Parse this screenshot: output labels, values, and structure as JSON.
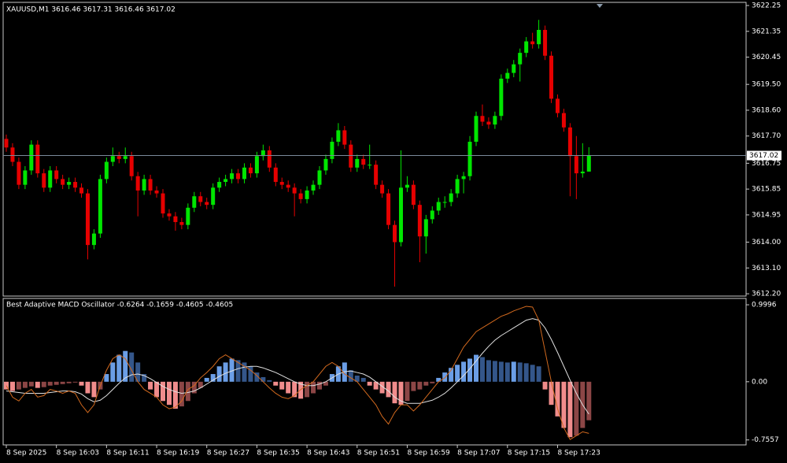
{
  "chart_data": [
    {
      "type": "candlestick",
      "title": "XAUUSD,M1  3616.46 3617.31 3616.46 3617.02",
      "up_color": "#00e600",
      "down_color": "#e60000",
      "last_price_color": "#7a8a9a",
      "ylim": [
        3612.12,
        3622.36
      ],
      "yticks": [
        3622.25,
        3621.35,
        3620.45,
        {
          "value": 3619.5,
          "label": "3619.50"
        },
        {
          "value": 3618.6,
          "label": "3618.60"
        },
        {
          "value": 3617.7,
          "label": "3617.70"
        },
        3616.75,
        3615.85,
        3614.95,
        {
          "value": 3614,
          "label": "3614.00"
        },
        {
          "value": 3613.1,
          "label": "3613.10"
        },
        {
          "value": 3612.2,
          "label": "3612.20"
        }
      ],
      "last_price": 3617.02,
      "ohlc": [
        [
          3617.6,
          3617.75,
          3617.15,
          3617.3
        ],
        [
          3617.3,
          3617.45,
          3616.65,
          3616.8
        ],
        [
          3616.8,
          3616.95,
          3615.85,
          3616.0
        ],
        [
          3616.0,
          3616.65,
          3615.85,
          3616.5
        ],
        [
          3616.5,
          3617.55,
          3616.35,
          3617.4
        ],
        [
          3617.4,
          3617.55,
          3616.25,
          3616.4
        ],
        [
          3616.4,
          3616.55,
          3615.75,
          3615.9
        ],
        [
          3615.9,
          3616.65,
          3615.75,
          3616.5
        ],
        [
          3616.5,
          3616.65,
          3616.05,
          3616.2
        ],
        [
          3616.2,
          3616.35,
          3615.85,
          3616.0
        ],
        [
          3616.0,
          3616.25,
          3615.85,
          3616.1
        ],
        [
          3616.1,
          3616.25,
          3615.75,
          3615.9
        ],
        [
          3615.9,
          3616.05,
          3615.55,
          3615.7
        ],
        [
          3615.7,
          3615.85,
          3613.4,
          3613.9
        ],
        [
          3613.9,
          3614.45,
          3613.75,
          3614.3
        ],
        [
          3614.3,
          3616.35,
          3614.15,
          3616.2
        ],
        [
          3616.2,
          3616.95,
          3616.05,
          3616.8
        ],
        [
          3616.8,
          3617.3,
          3616.65,
          3617.0
        ],
        [
          3617.0,
          3617.15,
          3616.75,
          3616.9
        ],
        [
          3616.9,
          3617.3,
          3616.75,
          3617.0
        ],
        [
          3617.0,
          3617.15,
          3616.15,
          3616.3
        ],
        [
          3616.3,
          3616.45,
          3614.9,
          3615.8
        ],
        [
          3615.8,
          3616.35,
          3615.65,
          3616.2
        ],
        [
          3616.2,
          3616.35,
          3615.65,
          3615.8
        ],
        [
          3615.8,
          3615.95,
          3615.55,
          3615.7
        ],
        [
          3615.7,
          3615.85,
          3614.85,
          3615.0
        ],
        [
          3615.0,
          3615.15,
          3614.75,
          3614.9
        ],
        [
          3614.9,
          3615.05,
          3614.4,
          3614.7
        ],
        [
          3614.7,
          3614.85,
          3614.45,
          3614.6
        ],
        [
          3614.6,
          3615.35,
          3614.45,
          3615.2
        ],
        [
          3615.2,
          3615.75,
          3615.05,
          3615.6
        ],
        [
          3615.6,
          3615.75,
          3615.25,
          3615.4
        ],
        [
          3615.4,
          3615.55,
          3615.15,
          3615.3
        ],
        [
          3615.3,
          3616.05,
          3615.15,
          3615.9
        ],
        [
          3615.9,
          3616.25,
          3615.75,
          3616.1
        ],
        [
          3616.1,
          3616.35,
          3615.95,
          3616.2
        ],
        [
          3616.2,
          3616.55,
          3616.05,
          3616.4
        ],
        [
          3616.4,
          3616.55,
          3616.05,
          3616.2
        ],
        [
          3616.2,
          3616.75,
          3616.05,
          3616.6
        ],
        [
          3616.6,
          3616.75,
          3616.25,
          3616.4
        ],
        [
          3616.4,
          3617.15,
          3616.25,
          3617.0
        ],
        [
          3617.0,
          3617.4,
          3616.85,
          3617.2
        ],
        [
          3617.2,
          3617.35,
          3616.45,
          3616.6
        ],
        [
          3616.6,
          3616.75,
          3615.95,
          3616.1
        ],
        [
          3616.1,
          3616.25,
          3615.85,
          3616.0
        ],
        [
          3616.0,
          3616.15,
          3615.75,
          3615.9
        ],
        [
          3615.9,
          3616.05,
          3614.9,
          3615.7
        ],
        [
          3615.7,
          3615.85,
          3615.35,
          3615.5
        ],
        [
          3615.5,
          3615.95,
          3615.35,
          3615.8
        ],
        [
          3615.8,
          3616.15,
          3615.65,
          3616.0
        ],
        [
          3616.0,
          3616.65,
          3615.85,
          3616.5
        ],
        [
          3616.5,
          3617.05,
          3616.35,
          3616.9
        ],
        [
          3616.9,
          3617.65,
          3616.75,
          3617.5
        ],
        [
          3617.5,
          3618.15,
          3617.35,
          3617.9
        ],
        [
          3617.9,
          3618.05,
          3617.25,
          3617.4
        ],
        [
          3617.4,
          3617.55,
          3616.45,
          3616.6
        ],
        [
          3616.6,
          3617.05,
          3616.45,
          3616.9
        ],
        [
          3616.9,
          3617.05,
          3616.55,
          3616.7
        ],
        [
          3616.7,
          3617.4,
          3616.55,
          3616.7
        ],
        [
          3616.7,
          3616.85,
          3615.85,
          3616.0
        ],
        [
          3616.0,
          3616.15,
          3615.55,
          3615.7
        ],
        [
          3615.7,
          3615.85,
          3614.45,
          3614.6
        ],
        [
          3614.6,
          3614.75,
          3612.45,
          3614.0
        ],
        [
          3614.0,
          3617.2,
          3613.85,
          3615.9
        ],
        [
          3615.9,
          3616.3,
          3615.75,
          3616.0
        ],
        [
          3616.0,
          3616.15,
          3615.15,
          3615.3
        ],
        [
          3615.3,
          3615.45,
          3613.3,
          3614.2
        ],
        [
          3614.2,
          3614.95,
          3613.6,
          3614.8
        ],
        [
          3614.8,
          3615.25,
          3614.65,
          3615.1
        ],
        [
          3615.1,
          3615.55,
          3614.95,
          3615.4
        ],
        [
          3615.4,
          3615.6,
          3615.2,
          3615.4
        ],
        [
          3615.4,
          3615.85,
          3615.25,
          3615.7
        ],
        [
          3615.7,
          3616.35,
          3615.55,
          3616.2
        ],
        [
          3616.2,
          3616.45,
          3615.7,
          3616.3
        ],
        [
          3616.3,
          3617.7,
          3616.15,
          3617.5
        ],
        [
          3617.5,
          3618.55,
          3617.35,
          3618.4
        ],
        [
          3618.4,
          3618.8,
          3618.05,
          3618.2
        ],
        [
          3618.2,
          3618.35,
          3617.95,
          3618.1
        ],
        [
          3618.1,
          3618.55,
          3617.95,
          3618.4
        ],
        [
          3618.4,
          3619.85,
          3618.25,
          3619.7
        ],
        [
          3619.7,
          3620.05,
          3619.55,
          3619.9
        ],
        [
          3619.9,
          3620.35,
          3619.75,
          3620.2
        ],
        [
          3620.2,
          3620.75,
          3619.6,
          3620.6
        ],
        [
          3620.6,
          3621.15,
          3620.45,
          3621.0
        ],
        [
          3621.0,
          3621.3,
          3620.75,
          3620.9
        ],
        [
          3620.9,
          3621.75,
          3620.75,
          3621.4
        ],
        [
          3621.4,
          3621.55,
          3620.35,
          3620.5
        ],
        [
          3620.5,
          3620.65,
          3618.85,
          3619.0
        ],
        [
          3619.0,
          3619.15,
          3618.35,
          3618.5
        ],
        [
          3618.5,
          3618.65,
          3617.85,
          3618.0
        ],
        [
          3618.0,
          3618.15,
          3615.6,
          3617.0
        ],
        [
          3617.0,
          3617.7,
          3615.5,
          3616.4
        ],
        [
          3616.4,
          3617.45,
          3616.25,
          3616.46
        ],
        [
          3616.46,
          3617.31,
          3616.46,
          3617.02
        ]
      ]
    },
    {
      "type": "oscillator",
      "title": "Best Adaptive MACD Oscillator -0.6264 -0.1659 -0.4605 -0.4605",
      "ylim": [
        -0.82,
        1.082
      ],
      "yticks": [
        0.9996,
        {
          "value": 0,
          "label": "0.00"
        },
        -0.7557
      ],
      "categories": [
        "8 Sep 2025",
        null,
        null,
        null,
        null,
        null,
        null,
        null,
        "8 Sep 16:03",
        null,
        null,
        null,
        null,
        null,
        null,
        null,
        "8 Sep 16:11",
        null,
        null,
        null,
        null,
        null,
        null,
        null,
        "8 Sep 16:19",
        null,
        null,
        null,
        null,
        null,
        null,
        null,
        "8 Sep 16:27",
        null,
        null,
        null,
        null,
        null,
        null,
        null,
        "8 Sep 16:35",
        null,
        null,
        null,
        null,
        null,
        null,
        null,
        "8 Sep 16:43",
        null,
        null,
        null,
        null,
        null,
        null,
        null,
        "8 Sep 16:51",
        null,
        null,
        null,
        null,
        null,
        null,
        null,
        "8 Sep 16:59",
        null,
        null,
        null,
        null,
        null,
        null,
        null,
        "8 Sep 17:07",
        null,
        null,
        null,
        null,
        null,
        null,
        null,
        "8 Sep 17:15",
        null,
        null,
        null,
        null,
        null,
        null,
        null,
        "8 Sep 17:23",
        null,
        null,
        null,
        null,
        null
      ],
      "histogram_colors": {
        "pos_rising": "#6b9ee6",
        "pos_falling": "#34568a",
        "neg_falling": "#f08c8c",
        "neg_rising": "#8c4646"
      },
      "histogram": [
        -0.1,
        -0.12,
        -0.1,
        -0.08,
        -0.06,
        -0.08,
        -0.07,
        -0.05,
        -0.04,
        -0.03,
        -0.02,
        -0.01,
        -0.05,
        -0.15,
        -0.2,
        -0.1,
        0.1,
        0.25,
        0.35,
        0.4,
        0.38,
        0.25,
        0.1,
        -0.1,
        -0.2,
        -0.25,
        -0.3,
        -0.35,
        -0.32,
        -0.25,
        -0.15,
        -0.08,
        0.05,
        0.1,
        0.2,
        0.25,
        0.3,
        0.28,
        0.25,
        0.2,
        0.12,
        0.06,
        0.02,
        -0.05,
        -0.1,
        -0.15,
        -0.2,
        -0.22,
        -0.2,
        -0.15,
        -0.1,
        -0.05,
        0.1,
        0.2,
        0.25,
        0.15,
        0.08,
        0.05,
        -0.05,
        -0.1,
        -0.15,
        -0.2,
        -0.28,
        -0.3,
        -0.25,
        -0.12,
        -0.1,
        -0.05,
        -0.02,
        0.05,
        0.12,
        0.18,
        0.22,
        0.26,
        0.3,
        0.35,
        0.32,
        0.28,
        0.27,
        0.26,
        0.25,
        0.26,
        0.25,
        0.24,
        0.22,
        0.2,
        -0.1,
        -0.3,
        -0.45,
        -0.6,
        -0.72,
        -0.7,
        -0.6,
        -0.5
      ],
      "lines": [
        {
          "color": "#e0e0e0",
          "values": [
            -0.12,
            -0.13,
            -0.14,
            -0.15,
            -0.15,
            -0.15,
            -0.15,
            -0.14,
            -0.13,
            -0.12,
            -0.12,
            -0.13,
            -0.16,
            -0.22,
            -0.26,
            -0.24,
            -0.18,
            -0.1,
            -0.02,
            0.05,
            0.09,
            0.1,
            0.08,
            0.04,
            -0.01,
            -0.06,
            -0.1,
            -0.13,
            -0.15,
            -0.14,
            -0.12,
            -0.08,
            -0.03,
            0.02,
            0.07,
            0.11,
            0.14,
            0.17,
            0.19,
            0.2,
            0.2,
            0.18,
            0.15,
            0.12,
            0.08,
            0.04,
            0.0,
            -0.03,
            -0.05,
            -0.05,
            -0.03,
            0.0,
            0.05,
            0.1,
            0.13,
            0.14,
            0.12,
            0.1,
            0.06,
            0.0,
            -0.06,
            -0.12,
            -0.2,
            -0.25,
            -0.28,
            -0.28,
            -0.28,
            -0.26,
            -0.24,
            -0.2,
            -0.15,
            -0.08,
            0.0,
            0.08,
            0.17,
            0.27,
            0.37,
            0.46,
            0.54,
            0.6,
            0.65,
            0.7,
            0.75,
            0.8,
            0.82,
            0.8,
            0.7,
            0.55,
            0.38,
            0.2,
            0.02,
            -0.15,
            -0.3,
            -0.42
          ]
        },
        {
          "color": "#d2691e",
          "values": [
            -0.05,
            -0.2,
            -0.25,
            -0.15,
            -0.1,
            -0.2,
            -0.18,
            -0.1,
            -0.12,
            -0.15,
            -0.12,
            -0.15,
            -0.3,
            -0.4,
            -0.3,
            -0.05,
            0.15,
            0.3,
            0.35,
            0.3,
            0.15,
            0.0,
            -0.1,
            -0.15,
            -0.2,
            -0.3,
            -0.35,
            -0.33,
            -0.25,
            -0.1,
            -0.05,
            0.05,
            0.12,
            0.2,
            0.3,
            0.35,
            0.3,
            0.25,
            0.2,
            0.15,
            0.08,
            0.0,
            -0.08,
            -0.15,
            -0.2,
            -0.22,
            -0.18,
            -0.1,
            -0.05,
            0.0,
            0.1,
            0.2,
            0.25,
            0.2,
            0.1,
            0.05,
            0.0,
            -0.1,
            -0.2,
            -0.3,
            -0.45,
            -0.55,
            -0.4,
            -0.3,
            -0.3,
            -0.38,
            -0.3,
            -0.2,
            -0.1,
            0.0,
            0.05,
            0.15,
            0.3,
            0.45,
            0.55,
            0.65,
            0.7,
            0.75,
            0.8,
            0.85,
            0.88,
            0.92,
            0.95,
            0.98,
            0.97,
            0.8,
            0.4,
            0.0,
            -0.35,
            -0.6,
            -0.75,
            -0.7,
            -0.65,
            -0.67
          ]
        }
      ]
    }
  ]
}
